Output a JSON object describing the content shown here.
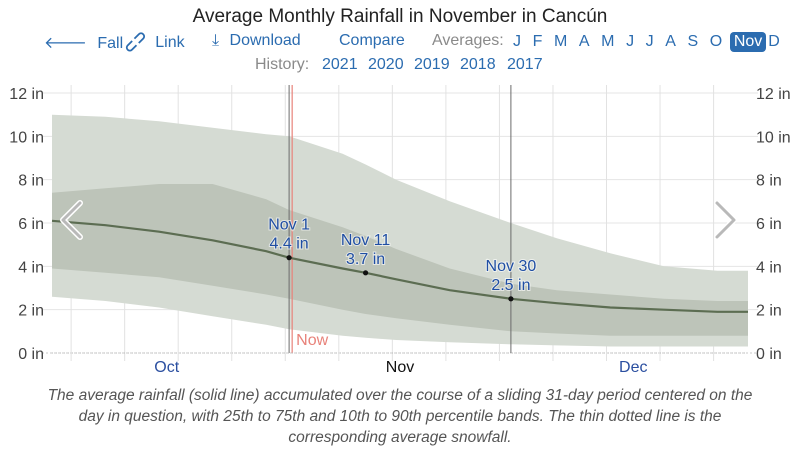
{
  "title": "Average Monthly Rainfall in November in Cancún",
  "toolbar": {
    "back_label": "Fall",
    "link_label": "Link",
    "download_label": "Download",
    "compare_label": "Compare",
    "averages_label": "Averages:",
    "months": [
      "J",
      "F",
      "M",
      "A",
      "M",
      "J",
      "J",
      "A",
      "S",
      "O",
      "Nov",
      "D"
    ],
    "active_month_index": 10
  },
  "history": {
    "label": "History:",
    "years": [
      "2021",
      "2020",
      "2019",
      "2018",
      "2017"
    ]
  },
  "colors": {
    "link": "#2b6cb0",
    "band_outer": "#d5dbd3",
    "band_inner": "#bdc4b9",
    "mean_line": "#5c6d52",
    "now_line": "#e8827a",
    "annotation": "#1f4ea3"
  },
  "caption": "The average rainfall (solid line) accumulated over the course of a sliding 31-day period centered on the day in question, with 25th to 75th and 10th to 90th percentile bands. The thin dotted line is the corresponding average snowfall.",
  "chart_data": {
    "type": "area",
    "title": "Average Monthly Rainfall in November in Cancún",
    "xlabel": "",
    "ylabel": "",
    "x_unit": "day of year (Oct 1 = 0)",
    "xlim": [
      0,
      91
    ],
    "ylim": [
      0,
      12
    ],
    "y_ticks": [
      0,
      2,
      4,
      6,
      8,
      10,
      12
    ],
    "y_tick_labels": [
      "0 in",
      "2 in",
      "4 in",
      "6 in",
      "8 in",
      "10 in",
      "12 in"
    ],
    "month_labels": [
      {
        "label": "Oct",
        "day": 15,
        "current": false
      },
      {
        "label": "Nov",
        "day": 45.5,
        "current": true
      },
      {
        "label": "Dec",
        "day": 76,
        "current": false
      }
    ],
    "grid": true,
    "x": [
      0,
      7,
      14,
      21,
      28,
      31,
      38,
      41,
      45,
      52,
      60,
      66,
      73,
      80,
      87,
      91
    ],
    "series": [
      {
        "name": "90th percentile",
        "values": [
          11.0,
          10.9,
          10.7,
          10.4,
          10.1,
          10.0,
          9.2,
          8.7,
          8.0,
          7.0,
          6.0,
          5.3,
          4.6,
          4.0,
          3.8,
          3.8
        ]
      },
      {
        "name": "75th percentile",
        "values": [
          7.4,
          7.6,
          7.8,
          7.8,
          7.1,
          6.6,
          5.8,
          5.4,
          4.8,
          3.9,
          3.2,
          2.9,
          2.7,
          2.5,
          2.4,
          2.4
        ]
      },
      {
        "name": "Average rainfall",
        "values": [
          6.1,
          5.9,
          5.6,
          5.2,
          4.7,
          4.4,
          3.9,
          3.7,
          3.4,
          2.9,
          2.5,
          2.3,
          2.1,
          2.0,
          1.9,
          1.9
        ]
      },
      {
        "name": "25th percentile",
        "values": [
          3.9,
          3.7,
          3.5,
          3.1,
          2.7,
          2.5,
          2.0,
          1.8,
          1.6,
          1.3,
          1.0,
          0.9,
          0.8,
          0.8,
          0.8,
          0.8
        ]
      },
      {
        "name": "10th percentile",
        "values": [
          2.6,
          2.4,
          2.1,
          1.7,
          1.3,
          1.1,
          0.8,
          0.7,
          0.6,
          0.5,
          0.4,
          0.35,
          0.3,
          0.3,
          0.3,
          0.3
        ]
      }
    ],
    "snowfall": {
      "name": "Average snowfall (dotted)",
      "value": 0
    },
    "annotations": [
      {
        "date": "Nov 1",
        "day": 31,
        "value": 4.4,
        "label": "4.4 in"
      },
      {
        "date": "Nov 11",
        "day": 41,
        "value": 3.7,
        "label": "3.7 in"
      },
      {
        "date": "Nov 30",
        "day": 60,
        "value": 2.5,
        "label": "2.5 in"
      }
    ],
    "now_marker": {
      "label": "Now",
      "day": 31.4
    },
    "range_markers_days": [
      31,
      60
    ],
    "nav": {
      "prev": "previous-period",
      "next": "next-period"
    }
  }
}
